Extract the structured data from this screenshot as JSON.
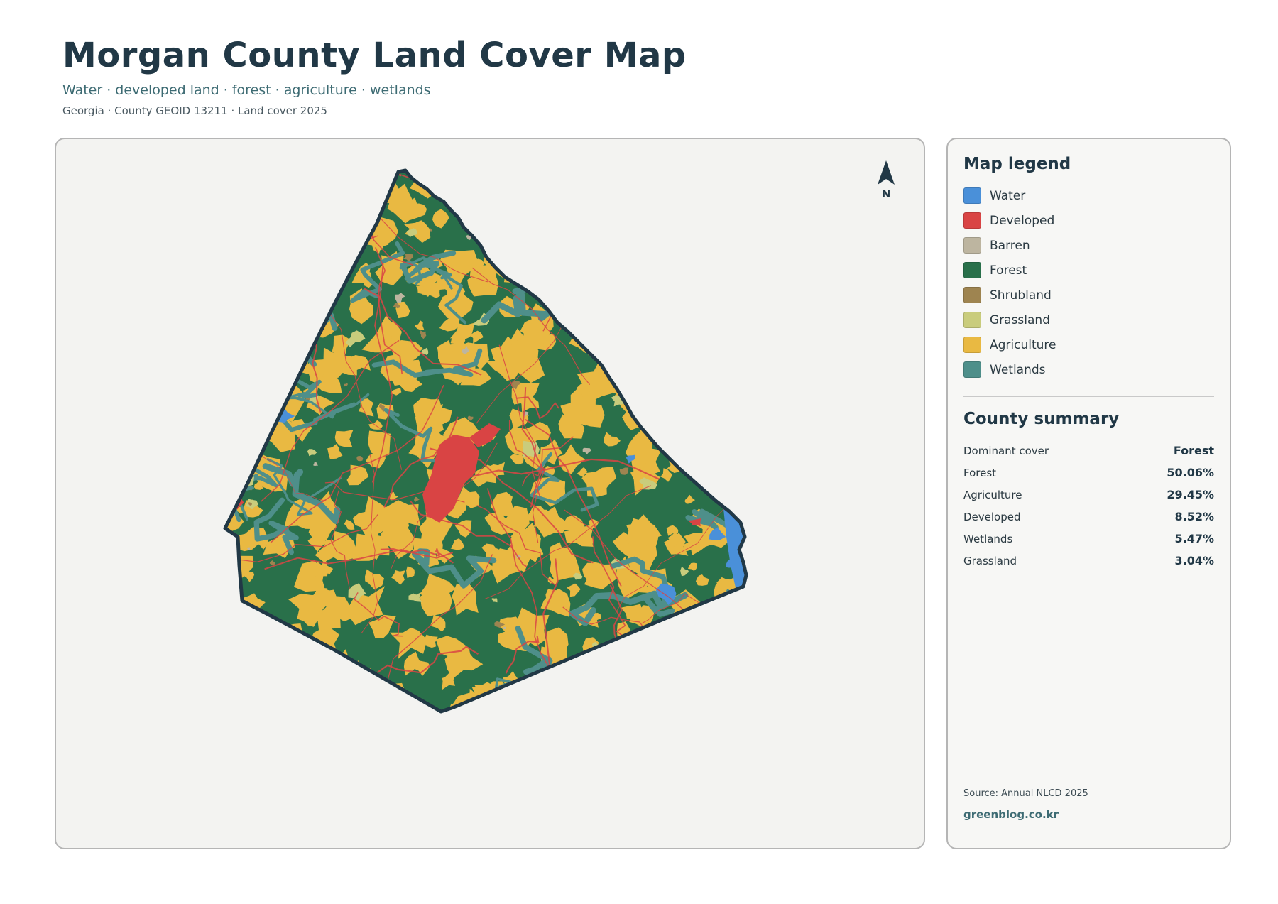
{
  "header": {
    "title": "Morgan County Land Cover Map",
    "subtitle": "Water · developed land · forest · agriculture · wetlands",
    "meta": "Georgia · County GEOID 13211 · Land cover 2025"
  },
  "map": {
    "north_label": "N",
    "colors": {
      "water": "#4a90d9",
      "developed": "#d94444",
      "barren": "#bdb5a0",
      "forest": "#29704a",
      "shrubland": "#9e8450",
      "grassland": "#c9cc7c",
      "agriculture": "#e9b942",
      "wetlands": "#4e8f8a",
      "border": "#213846"
    }
  },
  "legend": {
    "heading": "Map legend",
    "items": [
      {
        "label": "Water",
        "color": "#4a90d9"
      },
      {
        "label": "Developed",
        "color": "#d94444"
      },
      {
        "label": "Barren",
        "color": "#bdb5a0"
      },
      {
        "label": "Forest",
        "color": "#29704a"
      },
      {
        "label": "Shrubland",
        "color": "#9e8450"
      },
      {
        "label": "Grassland",
        "color": "#c9cc7c"
      },
      {
        "label": "Agriculture",
        "color": "#e9b942"
      },
      {
        "label": "Wetlands",
        "color": "#4e8f8a"
      }
    ]
  },
  "summary": {
    "heading": "County summary",
    "rows": [
      {
        "key": "Dominant cover",
        "value": "Forest"
      },
      {
        "key": "Forest",
        "value": "50.06%"
      },
      {
        "key": "Agriculture",
        "value": "29.45%"
      },
      {
        "key": "Developed",
        "value": "8.52%"
      },
      {
        "key": "Wetlands",
        "value": "5.47%"
      },
      {
        "key": "Grassland",
        "value": "3.04%"
      }
    ]
  },
  "footer": {
    "source": "Source: Annual NLCD 2025",
    "site": "greenblog.co.kr"
  }
}
